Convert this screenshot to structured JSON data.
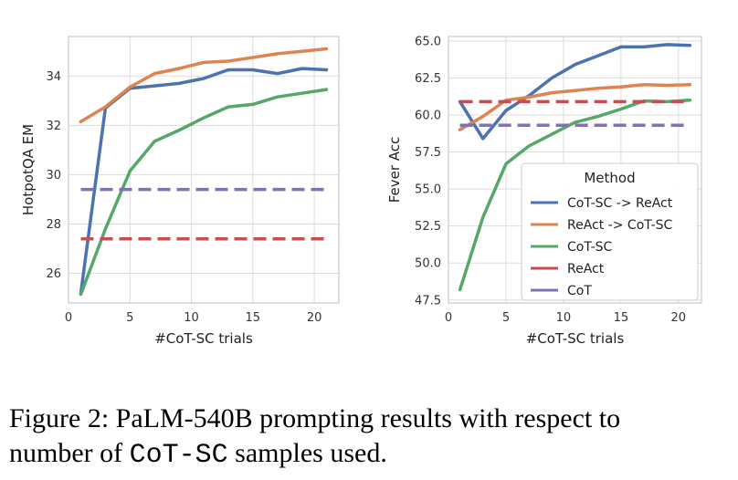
{
  "chart_data": [
    {
      "type": "line",
      "title": "",
      "xlabel": "#CoT-SC trials",
      "ylabel": "HotpotQA EM",
      "xlim": [
        0,
        22
      ],
      "ylim": [
        24.8,
        35.6
      ],
      "xticks": [
        "0",
        "5",
        "10",
        "15",
        "20"
      ],
      "yticks": [
        "26",
        "28",
        "30",
        "32",
        "34"
      ],
      "grid": true,
      "series": [
        {
          "name": "CoT-SC -> ReAct",
          "color": "#4c72b0",
          "style": "solid",
          "x": [
            1,
            3,
            5,
            7,
            9,
            11,
            13,
            15,
            17,
            19,
            21
          ],
          "y": [
            25.2,
            32.7,
            33.5,
            33.6,
            33.7,
            33.9,
            34.25,
            34.25,
            34.1,
            34.3,
            34.25
          ]
        },
        {
          "name": "ReAct -> CoT-SC",
          "color": "#dd8452",
          "style": "solid",
          "x": [
            1,
            3,
            5,
            7,
            9,
            11,
            13,
            15,
            17,
            19,
            21
          ],
          "y": [
            32.15,
            32.75,
            33.55,
            34.1,
            34.3,
            34.55,
            34.6,
            34.75,
            34.9,
            35.0,
            35.1
          ]
        },
        {
          "name": "CoT-SC",
          "color": "#55a868",
          "style": "solid",
          "x": [
            1,
            3,
            5,
            7,
            9,
            11,
            13,
            15,
            17,
            19,
            21
          ],
          "y": [
            25.15,
            27.8,
            30.15,
            31.35,
            31.8,
            32.3,
            32.75,
            32.85,
            33.15,
            33.3,
            33.45
          ]
        },
        {
          "name": "ReAct",
          "color": "#c44e52",
          "style": "dashed",
          "x": [
            1,
            21
          ],
          "y": [
            27.4,
            27.4
          ]
        },
        {
          "name": "CoT",
          "color": "#8172b3",
          "style": "dashed",
          "x": [
            1,
            21
          ],
          "y": [
            29.4,
            29.4
          ]
        }
      ]
    },
    {
      "type": "line",
      "title": "",
      "xlabel": "#CoT-SC trials",
      "ylabel": "Fever Acc",
      "xlim": [
        0,
        22
      ],
      "ylim": [
        47.3,
        65.3
      ],
      "xticks": [
        "0",
        "5",
        "10",
        "15",
        "20"
      ],
      "yticks": [
        "47.5",
        "50.0",
        "52.5",
        "55.0",
        "57.5",
        "60.0",
        "62.5",
        "65.0"
      ],
      "grid": true,
      "legend": {
        "title": "Method",
        "position": "lower-right"
      },
      "series": [
        {
          "name": "CoT-SC -> ReAct",
          "color": "#4c72b0",
          "style": "solid",
          "x": [
            1,
            3,
            5,
            7,
            9,
            11,
            13,
            15,
            17,
            19,
            21
          ],
          "y": [
            60.9,
            58.4,
            60.3,
            61.3,
            62.5,
            63.4,
            64.0,
            64.6,
            64.6,
            64.75,
            64.7
          ]
        },
        {
          "name": "ReAct -> CoT-SC",
          "color": "#dd8452",
          "style": "solid",
          "x": [
            1,
            3,
            5,
            7,
            9,
            11,
            13,
            15,
            17,
            19,
            21
          ],
          "y": [
            59.0,
            59.9,
            61.0,
            61.2,
            61.5,
            61.65,
            61.8,
            61.9,
            62.05,
            62.0,
            62.05
          ]
        },
        {
          "name": "CoT-SC",
          "color": "#55a868",
          "style": "solid",
          "x": [
            1,
            3,
            5,
            7,
            9,
            11,
            13,
            15,
            17,
            19,
            21
          ],
          "y": [
            48.2,
            53.1,
            56.7,
            57.9,
            58.7,
            59.5,
            59.9,
            60.4,
            60.95,
            60.9,
            61.0
          ]
        },
        {
          "name": "ReAct",
          "color": "#c44e52",
          "style": "dashed",
          "x": [
            1,
            21
          ],
          "y": [
            60.9,
            60.9
          ]
        },
        {
          "name": "CoT",
          "color": "#8172b3",
          "style": "dashed",
          "x": [
            1,
            21
          ],
          "y": [
            59.3,
            59.3
          ]
        }
      ]
    }
  ],
  "caption": {
    "prefix": "Figure 2: PaLM-540B prompting results with respect to",
    "line2_start": "number of ",
    "code": "CoT-SC",
    "line2_end": " samples used."
  }
}
